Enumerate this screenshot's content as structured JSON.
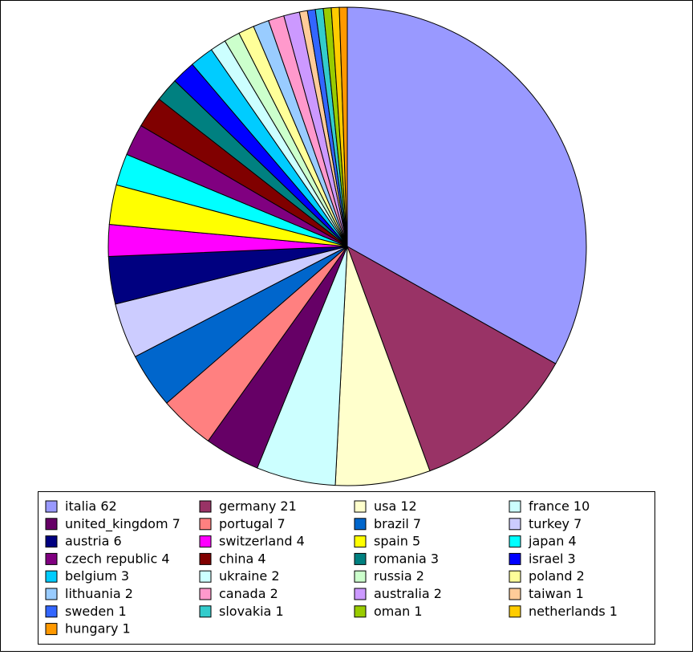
{
  "chart_data": {
    "type": "pie",
    "categories": [
      "italia",
      "germany",
      "usa",
      "france",
      "united_kingdom",
      "portugal",
      "brazil",
      "turkey",
      "austria",
      "switzerland",
      "spain",
      "japan",
      "czech republic",
      "china",
      "romania",
      "israel",
      "belgium",
      "ukraine",
      "russia",
      "poland",
      "lithuania",
      "canada",
      "australia",
      "taiwan",
      "sweden",
      "slovakia",
      "oman",
      "netherlands",
      "hungary"
    ],
    "values": [
      62,
      21,
      12,
      10,
      7,
      7,
      7,
      7,
      6,
      4,
      5,
      4,
      4,
      4,
      3,
      3,
      3,
      2,
      2,
      2,
      2,
      2,
      2,
      1,
      1,
      1,
      1,
      1,
      1
    ],
    "colors": [
      "#9999ff",
      "#993366",
      "#ffffcc",
      "#ccffff",
      "#660066",
      "#ff8080",
      "#0066cc",
      "#ccccff",
      "#000080",
      "#ff00ff",
      "#ffff00",
      "#00ffff",
      "#800080",
      "#800000",
      "#008080",
      "#0000ff",
      "#00ccff",
      "#ccffff",
      "#ccffcc",
      "#ffff99",
      "#99ccff",
      "#ff99cc",
      "#cc99ff",
      "#ffcc99",
      "#3366ff",
      "#33cccc",
      "#99cc00",
      "#ffcc00",
      "#ff9900"
    ]
  }
}
